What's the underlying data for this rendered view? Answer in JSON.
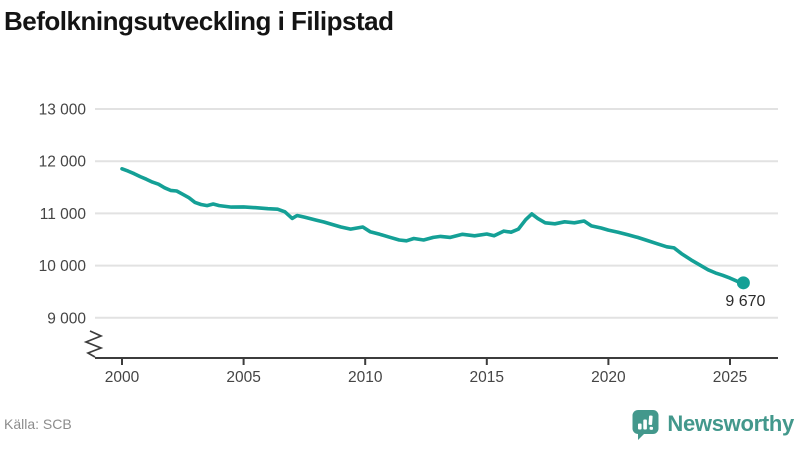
{
  "title": "Befolkningsutveckling i Filipstad",
  "footer": {
    "source": "Källa: SCB",
    "brand": "Newsworthy"
  },
  "colors": {
    "line": "#14a096",
    "logo": "#43988c",
    "grid": "#e2e2e2",
    "axis": "#3c3c3c",
    "tick_label": "#454545",
    "annotation": "#2b2b2b"
  },
  "chart_data": {
    "type": "line",
    "title": "Befolkningsutveckling i Filipstad",
    "xlabel": "",
    "ylabel": "",
    "grid": "horizontal",
    "axis_break": true,
    "legend": "none",
    "xlim": [
      1998.9,
      2027
    ],
    "ylim": [
      9000,
      13000
    ],
    "x_ticks": [
      2000,
      2005,
      2010,
      2015,
      2020,
      2025
    ],
    "x_tick_labels": [
      "2000",
      "2005",
      "2010",
      "2015",
      "2020",
      "2025"
    ],
    "y_ticks": [
      13000,
      12000,
      11000,
      10000,
      9000
    ],
    "y_tick_labels": [
      "13 000",
      "12 000",
      "11 000",
      "10 000",
      "9 000"
    ],
    "end_label": "9 670",
    "end_value": 9670,
    "series": [
      {
        "name": "Befolkning",
        "points": [
          [
            2000.0,
            11855
          ],
          [
            2000.25,
            11810
          ],
          [
            2000.5,
            11760
          ],
          [
            2000.75,
            11705
          ],
          [
            2001.0,
            11655
          ],
          [
            2001.25,
            11600
          ],
          [
            2001.5,
            11560
          ],
          [
            2001.75,
            11490
          ],
          [
            2002.0,
            11440
          ],
          [
            2002.25,
            11430
          ],
          [
            2002.5,
            11365
          ],
          [
            2002.75,
            11300
          ],
          [
            2003.0,
            11210
          ],
          [
            2003.25,
            11170
          ],
          [
            2003.5,
            11150
          ],
          [
            2003.75,
            11180
          ],
          [
            2004.0,
            11150
          ],
          [
            2004.5,
            11120
          ],
          [
            2005.0,
            11125
          ],
          [
            2005.5,
            11110
          ],
          [
            2006.0,
            11090
          ],
          [
            2006.4,
            11080
          ],
          [
            2006.7,
            11030
          ],
          [
            2007.0,
            10905
          ],
          [
            2007.2,
            10960
          ],
          [
            2007.5,
            10930
          ],
          [
            2008.0,
            10870
          ],
          [
            2008.3,
            10835
          ],
          [
            2008.7,
            10780
          ],
          [
            2009.0,
            10740
          ],
          [
            2009.4,
            10700
          ],
          [
            2009.9,
            10740
          ],
          [
            2010.2,
            10650
          ],
          [
            2010.6,
            10600
          ],
          [
            2011.0,
            10545
          ],
          [
            2011.4,
            10490
          ],
          [
            2011.7,
            10475
          ],
          [
            2012.0,
            10520
          ],
          [
            2012.4,
            10490
          ],
          [
            2012.8,
            10540
          ],
          [
            2013.1,
            10560
          ],
          [
            2013.5,
            10540
          ],
          [
            2014.0,
            10600
          ],
          [
            2014.5,
            10570
          ],
          [
            2015.0,
            10605
          ],
          [
            2015.3,
            10570
          ],
          [
            2015.7,
            10660
          ],
          [
            2016.0,
            10640
          ],
          [
            2016.3,
            10700
          ],
          [
            2016.6,
            10880
          ],
          [
            2016.85,
            10990
          ],
          [
            2017.1,
            10900
          ],
          [
            2017.4,
            10820
          ],
          [
            2017.8,
            10800
          ],
          [
            2018.2,
            10840
          ],
          [
            2018.6,
            10820
          ],
          [
            2019.0,
            10855
          ],
          [
            2019.3,
            10760
          ],
          [
            2019.7,
            10720
          ],
          [
            2020.0,
            10680
          ],
          [
            2020.4,
            10640
          ],
          [
            2020.8,
            10590
          ],
          [
            2021.2,
            10540
          ],
          [
            2021.6,
            10480
          ],
          [
            2022.0,
            10420
          ],
          [
            2022.4,
            10360
          ],
          [
            2022.7,
            10340
          ],
          [
            2023.0,
            10230
          ],
          [
            2023.4,
            10110
          ],
          [
            2023.8,
            10000
          ],
          [
            2024.1,
            9920
          ],
          [
            2024.4,
            9860
          ],
          [
            2024.7,
            9815
          ],
          [
            2025.0,
            9760
          ],
          [
            2025.3,
            9700
          ],
          [
            2025.55,
            9670
          ]
        ]
      }
    ]
  }
}
